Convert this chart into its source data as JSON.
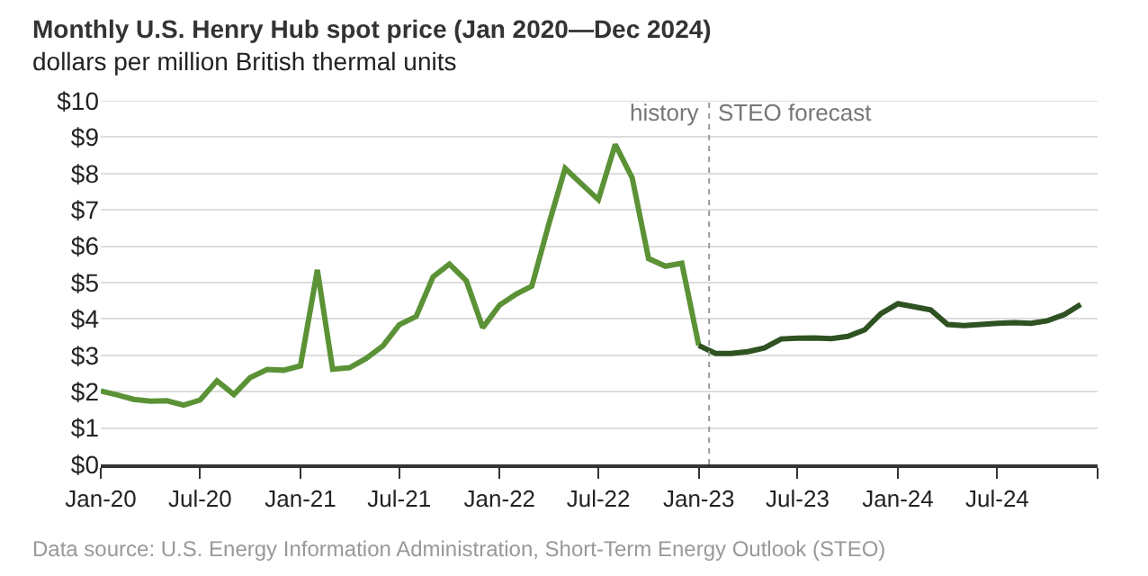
{
  "chart_data": {
    "type": "line",
    "title": "Monthly U.S. Henry Hub spot price (Jan 2020—Dec 2024)",
    "subtitle": "dollars per million British thermal units",
    "series": [
      {
        "color": "#5b9236",
        "x": [
          "2020-01",
          "2020-02",
          "2020-03",
          "2020-04",
          "2020-05",
          "2020-06",
          "2020-07",
          "2020-08",
          "2020-09",
          "2020-10",
          "2020-11",
          "2020-12",
          "2021-01",
          "2021-02",
          "2021-03",
          "2021-04",
          "2021-05",
          "2021-06",
          "2021-07",
          "2021-08",
          "2021-09",
          "2021-10",
          "2021-11",
          "2021-12",
          "2022-01",
          "2022-02",
          "2022-03",
          "2022-04",
          "2022-05",
          "2022-06",
          "2022-07",
          "2022-08",
          "2022-09",
          "2022-10",
          "2022-11",
          "2022-12",
          "2023-01"
        ],
        "values": [
          2.02,
          1.91,
          1.79,
          1.74,
          1.75,
          1.63,
          1.77,
          2.3,
          1.92,
          2.39,
          2.61,
          2.59,
          2.71,
          5.35,
          2.62,
          2.66,
          2.91,
          3.26,
          3.84,
          4.07,
          5.16,
          5.51,
          5.05,
          3.76,
          4.38,
          4.69,
          4.9,
          6.6,
          8.14,
          7.7,
          7.28,
          8.8,
          7.88,
          5.66,
          5.45,
          5.53,
          3.27
        ]
      },
      {
        "color": "#2f5222",
        "x": [
          "2023-01",
          "2023-02",
          "2023-03",
          "2023-04",
          "2023-05",
          "2023-06",
          "2023-07",
          "2023-08",
          "2023-09",
          "2023-10",
          "2023-11",
          "2023-12",
          "2024-01",
          "2024-02",
          "2024-03",
          "2024-04",
          "2024-05",
          "2024-06",
          "2024-07",
          "2024-08",
          "2024-09",
          "2024-10",
          "2024-11",
          "2024-12"
        ],
        "values": [
          3.27,
          3.05,
          3.05,
          3.1,
          3.2,
          3.45,
          3.47,
          3.48,
          3.46,
          3.52,
          3.7,
          4.15,
          4.42,
          4.33,
          4.25,
          3.85,
          3.82,
          3.85,
          3.88,
          3.9,
          3.88,
          3.95,
          4.12,
          4.4
        ]
      }
    ],
    "xlim": [
      "2020-01",
      "2025-01"
    ],
    "xticks": [
      {
        "value": "2020-01",
        "label": "Jan-20"
      },
      {
        "value": "2020-07",
        "label": "Jul-20"
      },
      {
        "value": "2021-01",
        "label": "Jan-21"
      },
      {
        "value": "2021-07",
        "label": "Jul-21"
      },
      {
        "value": "2022-01",
        "label": "Jan-22"
      },
      {
        "value": "2022-07",
        "label": "Jul-22"
      },
      {
        "value": "2023-01",
        "label": "Jan-23"
      },
      {
        "value": "2023-07",
        "label": "Jul-23"
      },
      {
        "value": "2024-01",
        "label": "Jan-24"
      },
      {
        "value": "2024-07",
        "label": "Jul-24"
      },
      {
        "value": "2025-01",
        "label": null
      }
    ],
    "ylim": [
      0,
      10
    ],
    "yticks": [
      {
        "value": 0,
        "label": "$0"
      },
      {
        "value": 1,
        "label": "$1"
      },
      {
        "value": 2,
        "label": "$2"
      },
      {
        "value": 3,
        "label": "$3"
      },
      {
        "value": 4,
        "label": "$4"
      },
      {
        "value": 5,
        "label": "$5"
      },
      {
        "value": 6,
        "label": "$6"
      },
      {
        "value": 7,
        "label": "$7"
      },
      {
        "value": 8,
        "label": "$8"
      },
      {
        "value": 9,
        "label": "$9"
      },
      {
        "value": 10,
        "label": "$10"
      }
    ],
    "grid": "y",
    "marker": "none",
    "line_style": "solid",
    "ref_lines": [
      {
        "axis": "x",
        "value": "2023-01-20",
        "color": "#999999",
        "line_style": "dotted"
      }
    ],
    "annotations": [
      {
        "text": "history",
        "x": "2023-01-20",
        "y": 9.7
      },
      {
        "text": "STEO forecast",
        "x": "2023-01-20",
        "y": 9.7
      },
      "Data source: U.S. Energy Information Administration, Short-Term Energy Outlook (STEO)"
    ]
  }
}
